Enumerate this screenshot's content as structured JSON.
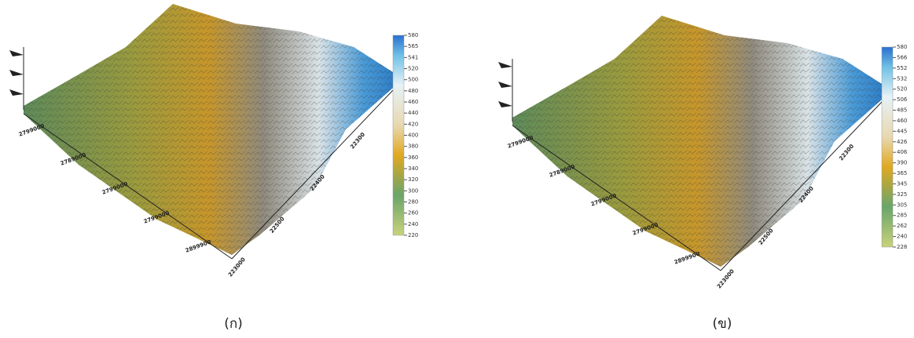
{
  "panels": [
    {
      "caption": "(ก)",
      "colorbar_ticks": [
        "580",
        "565",
        "541",
        "520",
        "500",
        "480",
        "460",
        "440",
        "420",
        "400",
        "380",
        "360",
        "340",
        "320",
        "300",
        "280",
        "260",
        "240",
        "220"
      ],
      "left_axis_labels": [
        "2799000",
        "2789000",
        "2799000",
        "2799000",
        "2899900"
      ],
      "right_axis_labels": [
        "223000",
        "22500",
        "22400",
        "22300"
      ]
    },
    {
      "caption": "(ข)",
      "colorbar_ticks": [
        "580",
        "566",
        "552",
        "532",
        "520",
        "506",
        "485",
        "460",
        "445",
        "426",
        "406",
        "390",
        "365",
        "345",
        "325",
        "305",
        "285",
        "262",
        "240",
        "228"
      ],
      "left_axis_labels": [
        "2799000",
        "2789000",
        "2799000",
        "2799000",
        "2899900"
      ],
      "right_axis_labels": [
        "223000",
        "22500",
        "22400",
        "22300"
      ]
    }
  ]
}
